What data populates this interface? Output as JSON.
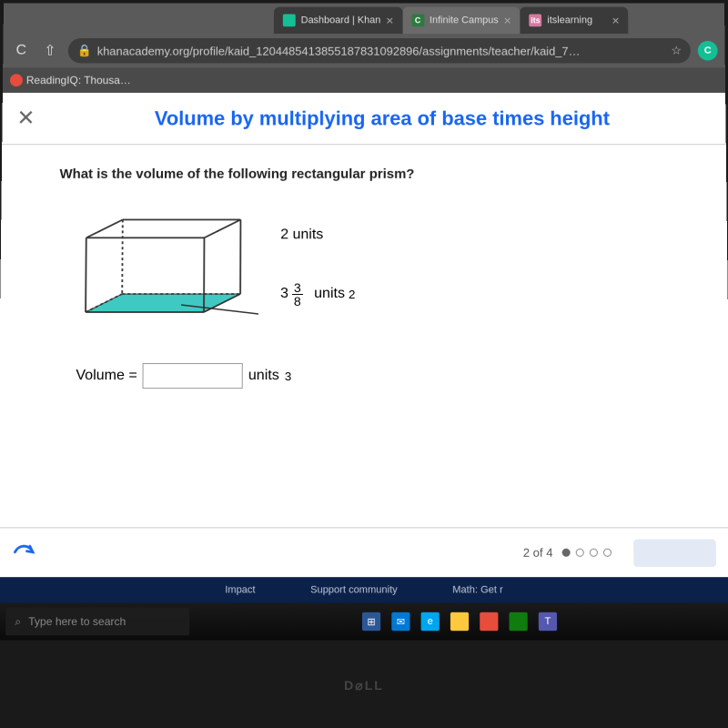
{
  "browser": {
    "tabs": [
      {
        "icon_bg": "#14bf96",
        "icon_text": "",
        "label": "Dashboard | Khan",
        "active": false
      },
      {
        "icon_bg": "#2c7a3f",
        "icon_text": "C",
        "label": "Infinite Campus",
        "active": true
      },
      {
        "icon_bg": "#d978a0",
        "icon_text": "its",
        "label": "itslearning",
        "active": false
      }
    ],
    "url": "khanacademy.org/profile/kaid_12044854138551878310928​96/assignments/teacher/kaid_7…",
    "star_color": "#ffffff",
    "ext_bg": "#14bf96",
    "ext_text": "C"
  },
  "bookmark": {
    "label": "ReadingIQ: Thousa…"
  },
  "exercise": {
    "title": "Volume by multiplying area of base times height",
    "title_color": "#1865f2",
    "question": "What is the volume of the following rectangular prism?",
    "height_label": "2 units",
    "base_whole": "3",
    "base_num": "3",
    "base_den": "8",
    "base_unit": "units",
    "base_exp": "2",
    "answer_label": "Volume =",
    "answer_unit": "units",
    "answer_exp": "3",
    "progress_text": "2 of 4",
    "current_dot": 0,
    "prism": {
      "stroke": "#333333",
      "fill": "#1fbfb8",
      "fill_opacity": "0.85"
    }
  },
  "ka_footer": {
    "items": [
      "Impact",
      "Support community",
      "Math: Get r"
    ]
  },
  "taskbar": {
    "search_placeholder": "Type here to search",
    "icons": [
      {
        "bg": "#2b5797",
        "text": "⊞"
      },
      {
        "bg": "#0078d4",
        "text": "✉"
      },
      {
        "bg": "#00a4ef",
        "text": "e"
      },
      {
        "bg": "#ffc83d",
        "text": ""
      },
      {
        "bg": "#e74c3c",
        "text": ""
      },
      {
        "bg": "#107c10",
        "text": ""
      },
      {
        "bg": "#5558af",
        "text": "T"
      }
    ]
  }
}
